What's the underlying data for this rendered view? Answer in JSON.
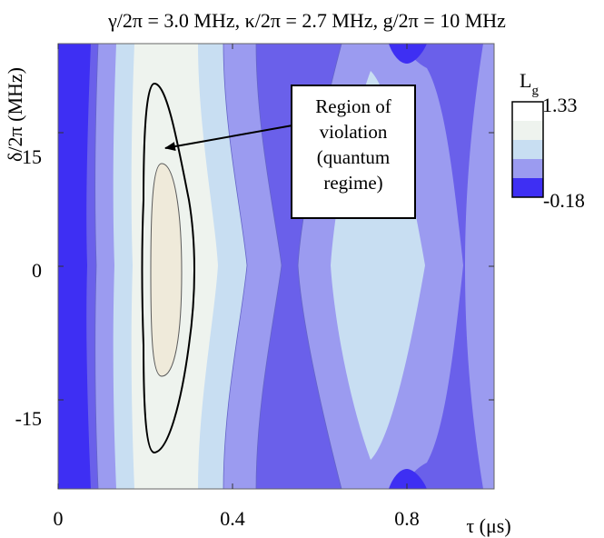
{
  "chart_data": {
    "type": "heatmap",
    "title": "γ/2π = 3.0 MHz, κ/2π = 2.7 MHz, g/2π = 10 MHz",
    "xlabel": "τ (μs)",
    "ylabel": "δ/2π (MHz)",
    "xlim": [
      0,
      1.0
    ],
    "ylim": [
      -25,
      25
    ],
    "x_ticks": [
      {
        "value": 0,
        "label": "0"
      },
      {
        "value": 0.4,
        "label": "0.4"
      },
      {
        "value": 0.8,
        "label": "0.8"
      }
    ],
    "y_ticks": [
      {
        "value": 15,
        "label": "15"
      },
      {
        "value": 0,
        "label": "0"
      },
      {
        "value": -15,
        "label": "-15"
      }
    ],
    "colorbar": {
      "label": "L",
      "label_subscript": "g",
      "max_label": "1.33",
      "min_label": "-0.18",
      "range": [
        -0.18,
        1.33
      ],
      "levels": [
        {
          "from": -0.18,
          "to": 0.12,
          "color": "#3e2ff3"
        },
        {
          "from": 0.12,
          "to": 0.42,
          "color": "#6a60ea"
        },
        {
          "from": 0.42,
          "to": 0.72,
          "color": "#9b9bf0"
        },
        {
          "from": 0.72,
          "to": 1.0,
          "color": "#c8def2"
        },
        {
          "from": 1.0,
          "to": 1.33,
          "color": "#eef3ee"
        }
      ]
    },
    "highest_level_color": "#efeada",
    "violation_boundary_value": 1.0,
    "grid": false,
    "annotation": {
      "text": "Region of\nviolation\n(quantum\nregime)",
      "points_to": {
        "x": 0.24,
        "y": 15
      }
    }
  }
}
